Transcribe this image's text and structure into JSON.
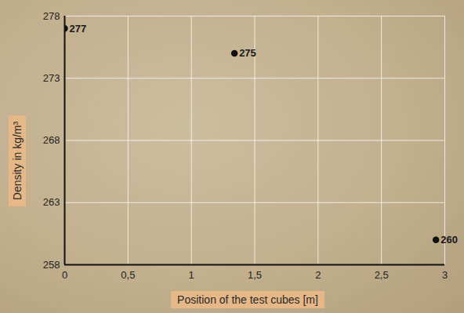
{
  "chart_data": {
    "type": "scatter",
    "x_label": "Position of the test cubes [m]",
    "y_label": "Density in kg/m³",
    "x": [
      0,
      1.34,
      2.93
    ],
    "values": [
      277,
      275,
      260
    ],
    "color": "#111111",
    "marker": "circle",
    "data_labels": true,
    "grid": true,
    "xlim": [
      0,
      3
    ],
    "xticks": [
      0,
      {
        "value": 0.5,
        "label": "0,5"
      },
      1,
      {
        "value": 1.5,
        "label": "1,5"
      },
      2,
      {
        "value": 2.5,
        "label": "2,5"
      },
      3
    ],
    "ylim": [
      258,
      278
    ],
    "yticks": [
      258,
      263,
      268,
      273,
      278
    ]
  }
}
